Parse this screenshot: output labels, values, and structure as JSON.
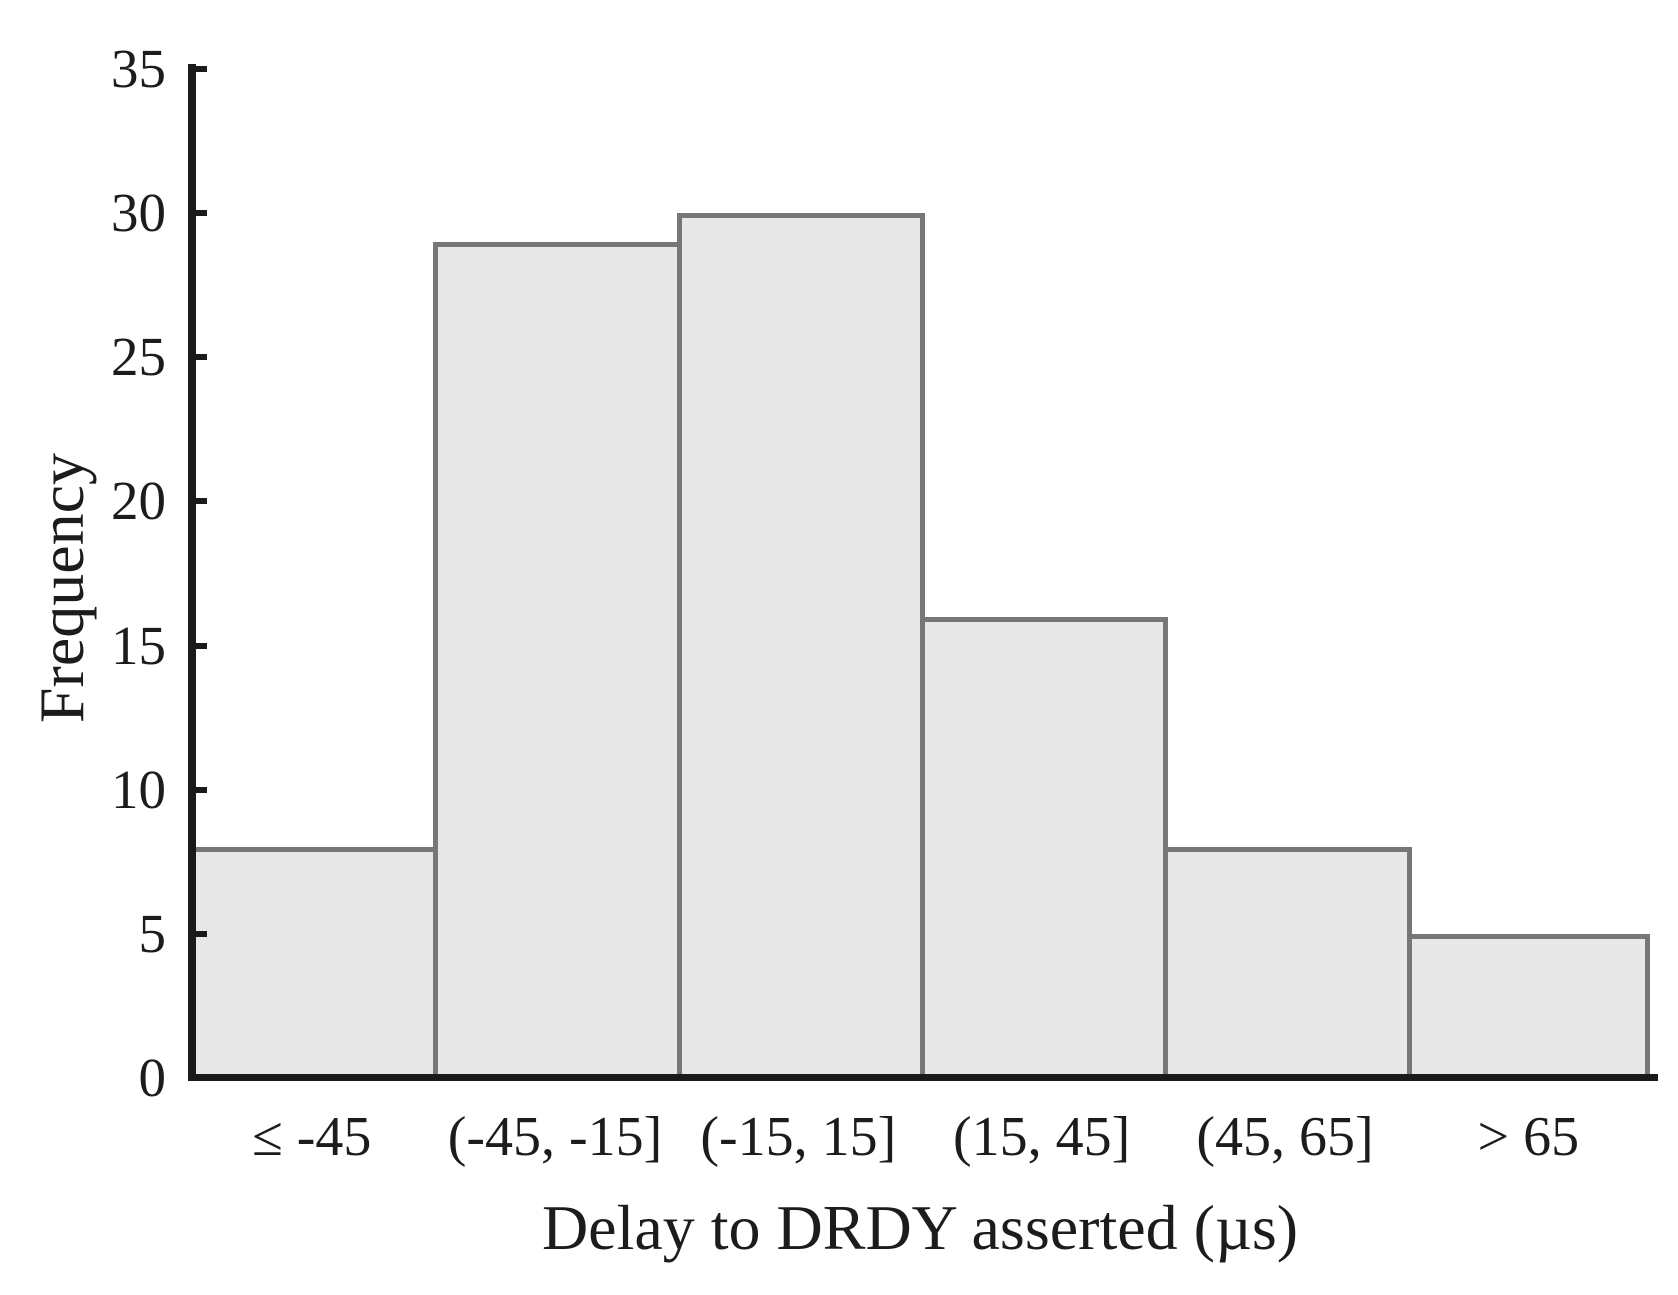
{
  "figure": {
    "background": "#ffffff",
    "text_color": "#1c1c1c",
    "axis_color": "#1a1a1a",
    "bar_fill": "#e8e8e8",
    "bar_border": "#777777"
  },
  "chart_data": {
    "type": "bar",
    "subtype": "histogram",
    "title": "",
    "categories": [
      "≤ -45",
      "(-45, -15]",
      "(-15, 15]",
      "(15, 45]",
      "(45, 65]",
      "> 65"
    ],
    "values": [
      8,
      29,
      30,
      16,
      8,
      5
    ],
    "xlabel": "Delay to DRDY asserted (µs)",
    "ylabel": "Frequency",
    "ylim": [
      0,
      35
    ],
    "yticks": [
      0,
      5,
      10,
      15,
      20,
      25,
      30,
      35
    ],
    "grid": "off",
    "legend": "none"
  }
}
